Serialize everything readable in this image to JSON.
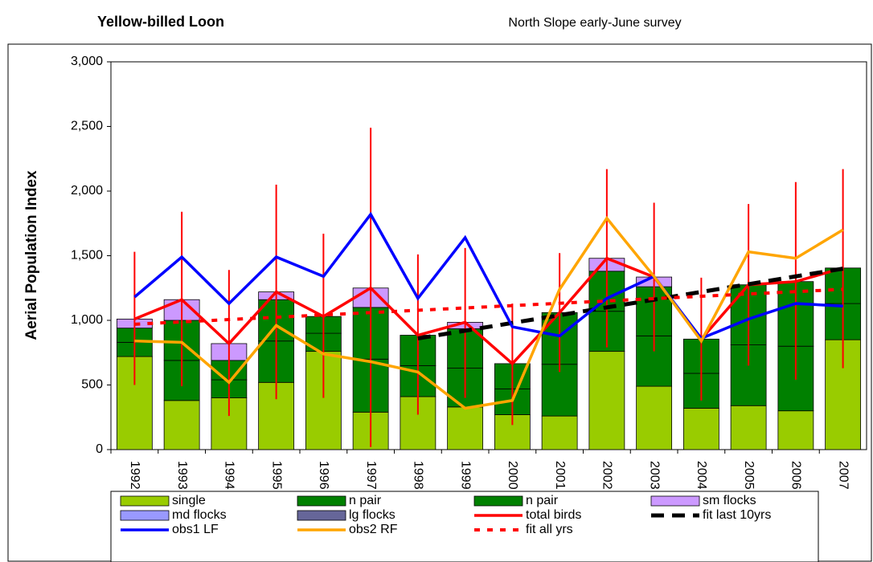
{
  "chart_data": {
    "type": "combo",
    "title": "Yellow-billed Loon",
    "subtitle": "North Slope early-June survey",
    "y_label": "Aerial Population Index",
    "categories": [
      "1992",
      "1993",
      "1994",
      "1995",
      "1996",
      "1997",
      "1998",
      "1999",
      "2000",
      "2001",
      "2002",
      "2003",
      "2004",
      "2005",
      "2006",
      "2007"
    ],
    "ylim": [
      0,
      3000
    ],
    "yticks": [
      0,
      500,
      {
        "value": 1000,
        "label": "1,000"
      },
      {
        "value": 1500,
        "label": "1,500"
      },
      {
        "value": 2000,
        "label": "2,000"
      },
      {
        "value": 2500,
        "label": "2,500"
      },
      {
        "value": 3000,
        "label": "3,000"
      }
    ],
    "series": [
      {
        "name": "single",
        "type": "bar",
        "color": "#99cc00",
        "values": [
          720,
          380,
          400,
          520,
          760,
          290,
          410,
          330,
          270,
          260,
          760,
          490,
          320,
          340,
          300,
          850
        ]
      },
      {
        "name": "n pair",
        "type": "bar",
        "color": "#008000",
        "values": [
          110,
          310,
          140,
          320,
          140,
          410,
          240,
          300,
          200,
          400,
          310,
          390,
          270,
          470,
          500,
          280
        ]
      },
      {
        "name": "n pair",
        "type": "bar",
        "color": "#008000",
        "values": [
          110,
          310,
          150,
          320,
          130,
          400,
          235,
          305,
          195,
          400,
          310,
          380,
          265,
          465,
          500,
          275
        ]
      },
      {
        "name": "sm flocks",
        "type": "bar",
        "color": "#cc99ff",
        "values": [
          70,
          160,
          130,
          60,
          0,
          150,
          0,
          50,
          0,
          0,
          100,
          75,
          0,
          0,
          0,
          0
        ]
      },
      {
        "name": "md flocks",
        "type": "bar",
        "color": "#9999ff",
        "values": [
          0,
          0,
          0,
          0,
          0,
          0,
          0,
          0,
          0,
          0,
          0,
          0,
          0,
          0,
          0,
          0
        ]
      },
      {
        "name": "lg flocks",
        "type": "bar",
        "color": "#666699",
        "values": [
          0,
          0,
          0,
          0,
          0,
          0,
          0,
          0,
          0,
          0,
          0,
          0,
          0,
          0,
          0,
          0
        ]
      },
      {
        "name": "total birds",
        "type": "line",
        "style": "solid",
        "color": "#ff0000",
        "values": [
          1010,
          1160,
          820,
          1220,
          1030,
          1250,
          885,
          985,
          665,
          1060,
          1480,
          1335,
          855,
          1275,
          1300,
          1405
        ],
        "error_low": [
          500,
          490,
          260,
          390,
          400,
          20,
          270,
          400,
          190,
          600,
          790,
          760,
          380,
          650,
          540,
          630
        ],
        "error_high": [
          1530,
          1840,
          1390,
          2050,
          1670,
          2490,
          1510,
          1560,
          1130,
          1520,
          2170,
          1910,
          1330,
          1900,
          2070,
          2170
        ]
      },
      {
        "name": "fit last 10yrs",
        "type": "line",
        "style": "dashed",
        "color": "#000000",
        "values": [
          null,
          null,
          null,
          null,
          null,
          null,
          860,
          920,
          980,
          1040,
          1100,
          1160,
          1220,
          1280,
          1340,
          1400
        ]
      },
      {
        "name": "obs1 LF",
        "type": "line",
        "style": "solid",
        "color": "#0000ff",
        "values": [
          1180,
          1490,
          1130,
          1490,
          1340,
          1820,
          1170,
          1640,
          950,
          880,
          1170,
          1340,
          860,
          1010,
          1130,
          1110
        ]
      },
      {
        "name": "obs2 RF",
        "type": "line",
        "style": "solid",
        "color": "#ffa500",
        "values": [
          840,
          830,
          520,
          960,
          740,
          680,
          600,
          320,
          380,
          1240,
          1790,
          1340,
          840,
          1530,
          1480,
          1700
        ]
      },
      {
        "name": "fit all yrs",
        "type": "line",
        "style": "dotted",
        "color": "#ff0000",
        "values": [
          970,
          988,
          1006,
          1024,
          1042,
          1060,
          1078,
          1096,
          1114,
          1132,
          1150,
          1168,
          1186,
          1204,
          1222,
          1240
        ]
      }
    ]
  }
}
